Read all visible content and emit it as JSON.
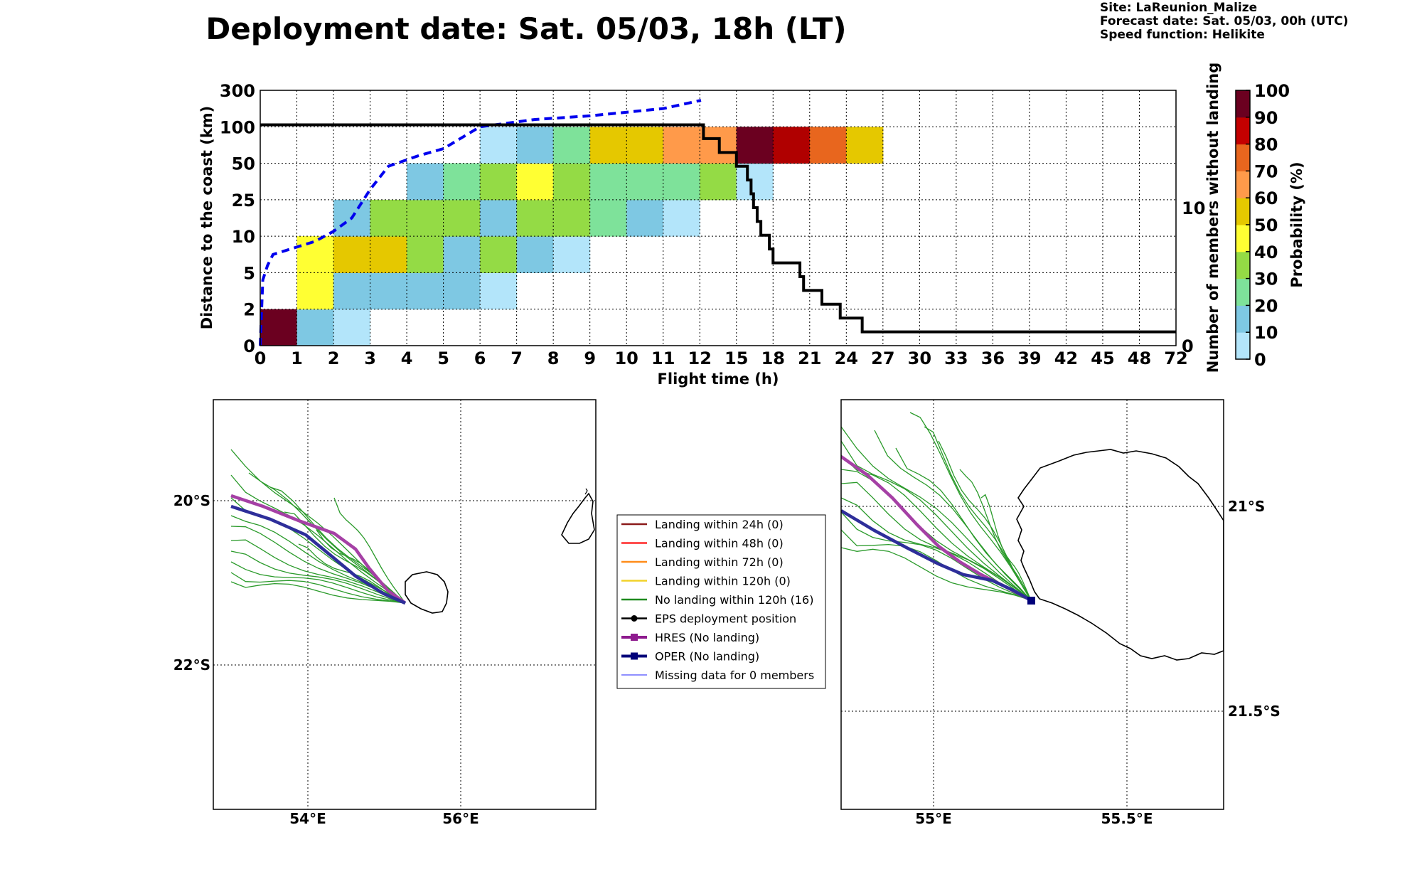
{
  "header": {
    "title": "Deployment date: Sat. 05/03, 18h (LT)",
    "site": "Site: LaReunion_Malize",
    "forecast_date": "Forecast date: Sat. 05/03, 00h (UTC)",
    "speed_function": "Speed function: Helikite"
  },
  "chart_data": [
    {
      "type": "heatmap",
      "xlabel": "Flight time (h)",
      "ylabel": "Distance to the coast (km)",
      "y2label": "Number of members without landing",
      "colorbar_label": "Probability (%)",
      "x_ticks": [
        "0",
        "1",
        "2",
        "3",
        "4",
        "5",
        "6",
        "7",
        "8",
        "9",
        "10",
        "11",
        "12",
        "15",
        "18",
        "21",
        "24",
        "27",
        "30",
        "33",
        "36",
        "39",
        "42",
        "45",
        "48",
        "72"
      ],
      "y_ticks": [
        "0",
        "2",
        "5",
        "10",
        "25",
        "50",
        "100",
        "300"
      ],
      "y2_ticks": [
        "0",
        "10"
      ],
      "y2lim": [
        0,
        18.5
      ],
      "colorbar_ticks": [
        "0",
        "10",
        "20",
        "30",
        "40",
        "50",
        "60",
        "70",
        "80",
        "90",
        "100"
      ],
      "colorbar_colors": [
        "#b3e5fa",
        "#7ec8e3",
        "#7ee29a",
        "#94db45",
        "#ffff33",
        "#e5c800",
        "#ff9a4a",
        "#e8661e",
        "#c40000",
        "#b00000",
        "#6b0020"
      ],
      "grid": true,
      "cells": [
        {
          "t": 0,
          "d": 0,
          "p": 100
        },
        {
          "t": 1,
          "d": 0,
          "p": 10
        },
        {
          "t": 2,
          "d": 0,
          "p": 5
        },
        {
          "t": 1,
          "d": 1,
          "p": 40
        },
        {
          "t": 2,
          "d": 1,
          "p": 10
        },
        {
          "t": 3,
          "d": 1,
          "p": 10
        },
        {
          "t": 4,
          "d": 1,
          "p": 10
        },
        {
          "t": 5,
          "d": 1,
          "p": 10
        },
        {
          "t": 6,
          "d": 1,
          "p": 5
        },
        {
          "t": 1,
          "d": 2,
          "p": 40
        },
        {
          "t": 2,
          "d": 2,
          "p": 50
        },
        {
          "t": 3,
          "d": 2,
          "p": 50
        },
        {
          "t": 4,
          "d": 2,
          "p": 30
        },
        {
          "t": 5,
          "d": 2,
          "p": 10
        },
        {
          "t": 6,
          "d": 2,
          "p": 30
        },
        {
          "t": 7,
          "d": 2,
          "p": 10
        },
        {
          "t": 8,
          "d": 2,
          "p": 5
        },
        {
          "t": 2,
          "d": 3,
          "p": 10
        },
        {
          "t": 3,
          "d": 3,
          "p": 30
        },
        {
          "t": 4,
          "d": 3,
          "p": 30
        },
        {
          "t": 5,
          "d": 3,
          "p": 30
        },
        {
          "t": 6,
          "d": 3,
          "p": 10
        },
        {
          "t": 7,
          "d": 3,
          "p": 30
        },
        {
          "t": 8,
          "d": 3,
          "p": 30
        },
        {
          "t": 9,
          "d": 3,
          "p": 20
        },
        {
          "t": 10,
          "d": 3,
          "p": 10
        },
        {
          "t": 11,
          "d": 3,
          "p": 5
        },
        {
          "t": 4,
          "d": 4,
          "p": 10
        },
        {
          "t": 5,
          "d": 4,
          "p": 20
        },
        {
          "t": 6,
          "d": 4,
          "p": 30
        },
        {
          "t": 7,
          "d": 4,
          "p": 40
        },
        {
          "t": 8,
          "d": 4,
          "p": 30
        },
        {
          "t": 9,
          "d": 4,
          "p": 20
        },
        {
          "t": 10,
          "d": 4,
          "p": 20
        },
        {
          "t": 11,
          "d": 4,
          "p": 20
        },
        {
          "t": 12,
          "d": 4,
          "p": 30
        },
        {
          "t": 13,
          "d": 4,
          "p": 5
        },
        {
          "t": 6,
          "d": 5,
          "p": 5
        },
        {
          "t": 7,
          "d": 5,
          "p": 10
        },
        {
          "t": 8,
          "d": 5,
          "p": 20
        },
        {
          "t": 9,
          "d": 5,
          "p": 50
        },
        {
          "t": 10,
          "d": 5,
          "p": 50
        },
        {
          "t": 11,
          "d": 5,
          "p": 60
        },
        {
          "t": 12,
          "d": 5,
          "p": 60
        },
        {
          "t": 13,
          "d": 5,
          "p": 100
        },
        {
          "t": 14,
          "d": 5,
          "p": 90
        },
        {
          "t": 15,
          "d": 5,
          "p": 70
        },
        {
          "t": 16,
          "d": 5,
          "p": 50
        }
      ],
      "members_without_landing": [
        [
          0,
          16
        ],
        [
          12.0,
          16
        ],
        [
          12.3,
          15
        ],
        [
          13.5,
          15
        ],
        [
          13.6,
          14
        ],
        [
          14.9,
          14
        ],
        [
          15.0,
          13
        ],
        [
          15.8,
          13
        ],
        [
          15.9,
          12
        ],
        [
          16.2,
          11
        ],
        [
          16.4,
          10
        ],
        [
          16.7,
          9
        ],
        [
          17.0,
          8
        ],
        [
          17.7,
          7
        ],
        [
          18.0,
          6
        ],
        [
          19.5,
          6
        ],
        [
          20.2,
          5
        ],
        [
          20.5,
          4
        ],
        [
          21.5,
          4
        ],
        [
          22.0,
          3
        ],
        [
          23.0,
          3
        ],
        [
          23.5,
          2
        ],
        [
          25.2,
          2
        ],
        [
          25.3,
          1
        ],
        [
          72,
          1
        ]
      ],
      "mean_distance": [
        [
          0,
          0
        ],
        [
          0.07,
          4.4
        ],
        [
          0.2,
          6
        ],
        [
          0.35,
          7.5
        ],
        [
          1.5,
          9.3
        ],
        [
          2.0,
          12
        ],
        [
          2.5,
          17.5
        ],
        [
          3.0,
          32
        ],
        [
          3.5,
          48
        ],
        [
          4.3,
          60
        ],
        [
          5.0,
          70
        ],
        [
          6.0,
          100
        ],
        [
          7.5,
          140
        ],
        [
          9.0,
          160
        ],
        [
          11.0,
          200
        ],
        [
          12.1,
          245
        ]
      ]
    },
    {
      "type": "map",
      "lon_ticks": [
        "54°E",
        "56°E"
      ],
      "lat_ticks": [
        "20°S",
        "22°S"
      ],
      "deployment": [
        55.25,
        -21.25
      ]
    },
    {
      "type": "map",
      "lon_ticks": [
        "55°E",
        "55.5°E"
      ],
      "lat_ticks": [
        "21°S",
        "21.5°S"
      ],
      "deployment": [
        55.25,
        -21.25
      ]
    }
  ],
  "legend": [
    {
      "label": "Landing within 24h (0)",
      "color": "#8b1a1a",
      "kind": "line"
    },
    {
      "label": "Landing within 48h (0)",
      "color": "#ff2a2a",
      "kind": "line"
    },
    {
      "label": "Landing within 72h (0)",
      "color": "#ff8c1a",
      "kind": "line"
    },
    {
      "label": "Landing within 120h (0)",
      "color": "#f2d22a",
      "kind": "line"
    },
    {
      "label": "No landing within 120h (16)",
      "color": "#1f8a1f",
      "kind": "line"
    },
    {
      "label": "EPS deployment position",
      "color": "#000000",
      "kind": "dot"
    },
    {
      "label": "HRES (No landing)",
      "color": "#8e1a8e",
      "kind": "square"
    },
    {
      "label": "OPER (No landing)",
      "color": "#00007a",
      "kind": "square"
    },
    {
      "label": "Missing data for 0 members",
      "color": "#4d4dff",
      "kind": "thin"
    }
  ]
}
